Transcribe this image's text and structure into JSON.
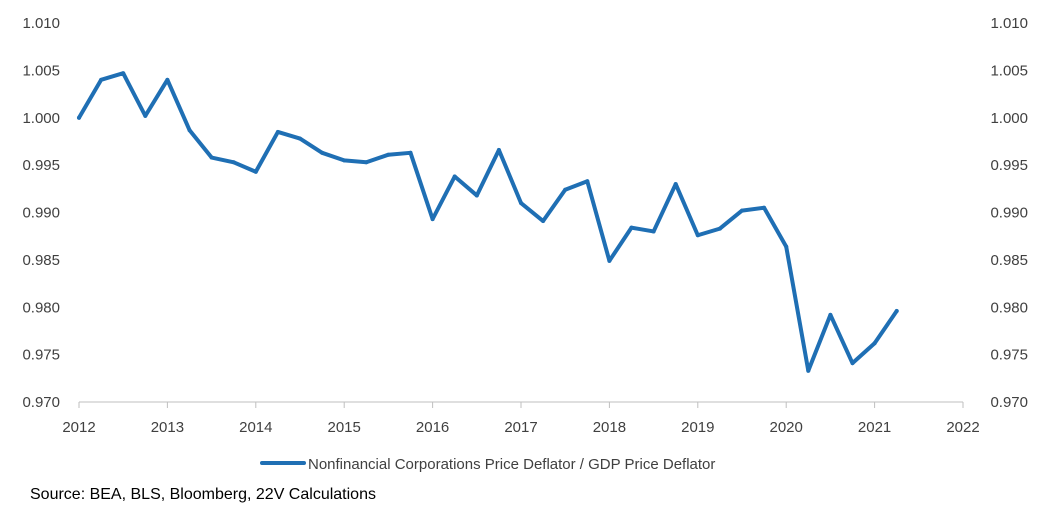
{
  "chart_data": {
    "type": "line",
    "title": "",
    "xlabel": "",
    "ylabel": "",
    "xlim": [
      2012,
      2022
    ],
    "ylim": [
      0.97,
      1.01
    ],
    "x_ticks": [
      "2012",
      "2013",
      "2014",
      "2015",
      "2016",
      "2017",
      "2018",
      "2019",
      "2020",
      "2021",
      "2022"
    ],
    "y_ticks": [
      "0.970",
      "0.975",
      "0.980",
      "0.985",
      "0.990",
      "0.995",
      "1.000",
      "1.005",
      "1.010"
    ],
    "y_ticks_right": [
      "0.970",
      "0.975",
      "0.980",
      "0.985",
      "0.990",
      "0.995",
      "1.000",
      "1.005",
      "1.010"
    ],
    "grid": false,
    "legend_position": "bottom",
    "series": [
      {
        "name": "Nonfinancial Corporations Price Deflator / GDP Price Deflator",
        "color": "#1f6fb4",
        "x": [
          2012.0,
          2012.25,
          2012.5,
          2012.75,
          2013.0,
          2013.25,
          2013.5,
          2013.75,
          2014.0,
          2014.25,
          2014.5,
          2014.75,
          2015.0,
          2015.25,
          2015.5,
          2015.75,
          2016.0,
          2016.25,
          2016.5,
          2016.75,
          2017.0,
          2017.25,
          2017.5,
          2017.75,
          2018.0,
          2018.25,
          2018.5,
          2018.75,
          2019.0,
          2019.25,
          2019.5,
          2019.75,
          2020.0,
          2020.25,
          2020.5,
          2020.75,
          2021.0,
          2021.25
        ],
        "values": [
          1.0,
          1.004,
          1.0047,
          1.0002,
          1.004,
          0.9987,
          0.9958,
          0.9953,
          0.9943,
          0.9985,
          0.9978,
          0.9963,
          0.9955,
          0.9953,
          0.9961,
          0.9963,
          0.9893,
          0.9938,
          0.9918,
          0.9966,
          0.991,
          0.9891,
          0.9924,
          0.9933,
          0.9849,
          0.9884,
          0.988,
          0.993,
          0.9876,
          0.9883,
          0.9902,
          0.9905,
          0.9864,
          0.9733,
          0.9792,
          0.9741,
          0.9762,
          0.9796
        ]
      }
    ],
    "source": "Source: BEA, BLS, Bloomberg, 22V Calculations"
  }
}
